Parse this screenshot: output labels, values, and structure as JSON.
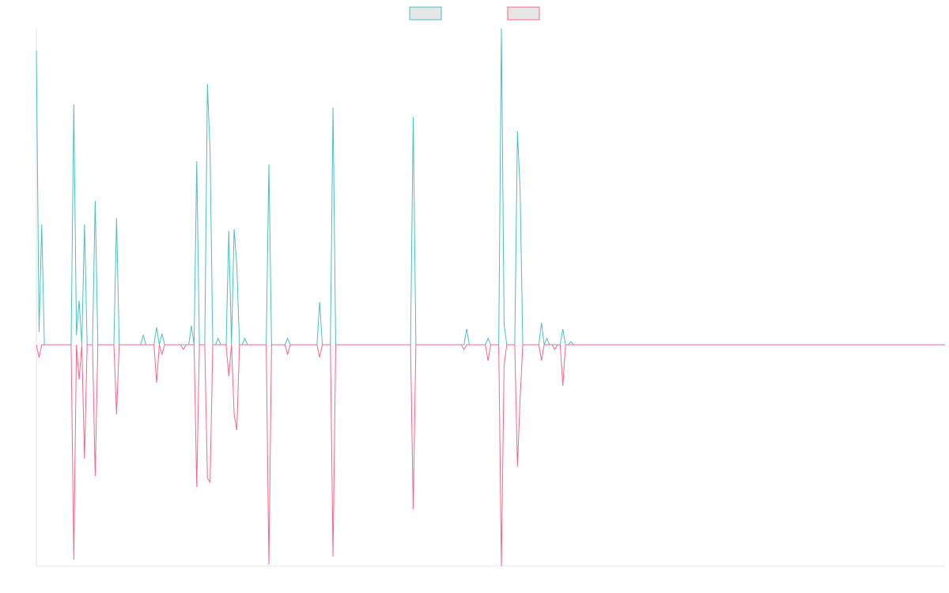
{
  "chart_data": {
    "type": "line",
    "x": [
      0,
      1,
      2,
      3,
      13,
      14,
      15,
      16,
      17,
      18,
      19,
      21,
      22,
      23,
      29,
      30,
      31,
      39,
      40,
      41,
      44,
      45,
      46,
      47,
      48,
      54,
      55,
      56,
      57,
      58,
      59,
      60,
      61,
      63,
      64,
      65,
      66,
      67,
      68,
      69,
      71,
      72,
      73,
      74,
      75,
      76,
      77,
      78,
      79,
      86,
      87,
      88,
      93,
      94,
      95,
      105,
      106,
      107,
      110,
      111,
      112,
      140,
      141,
      142,
      159,
      160,
      161,
      162,
      168,
      169,
      170,
      173,
      174,
      175,
      176,
      179,
      180,
      181,
      182,
      188,
      189,
      190,
      191,
      192,
      193,
      194,
      195,
      196,
      197,
      198,
      199,
      200,
      201,
      340
    ],
    "series": [
      {
        "color": "#4bc0c0",
        "values": [
          9.3,
          0.4,
          3.8,
          0,
          0,
          7.6,
          0.3,
          1.4,
          0,
          3.8,
          0,
          0,
          4.55,
          0,
          0,
          4.0,
          0,
          0,
          0.3,
          0,
          0,
          0.55,
          0,
          0.35,
          0,
          0,
          0,
          0,
          0,
          0.6,
          0,
          5.8,
          0,
          0,
          8.25,
          6.1,
          0,
          0,
          0.2,
          0,
          0,
          3.6,
          0,
          3.65,
          2.5,
          0,
          0,
          0.2,
          0,
          0,
          5.7,
          0,
          0,
          0.2,
          0,
          0,
          1.35,
          0,
          0,
          7.5,
          0,
          0,
          7.2,
          0,
          0,
          0,
          0.5,
          0,
          0,
          0.2,
          0,
          0,
          10,
          0.65,
          0,
          0,
          6.75,
          4.9,
          0,
          0,
          0.7,
          0,
          0.2,
          0,
          0,
          0,
          0,
          0,
          0.5,
          0,
          0,
          0.1,
          0,
          0
        ]
      },
      {
        "color": "#ff6384",
        "values": [
          0,
          -0.4,
          0,
          0,
          0,
          -6.8,
          0,
          -1.1,
          0,
          -3.6,
          0,
          0,
          -4.15,
          0,
          0,
          -2.2,
          0,
          0,
          0,
          0,
          0,
          -1.2,
          0,
          -0.3,
          0,
          0,
          -0.15,
          0,
          0,
          0,
          0,
          -4.5,
          0,
          0,
          -4.2,
          -4.35,
          0,
          0,
          0,
          0,
          0,
          -1.0,
          0,
          -2.2,
          -2.7,
          0,
          0,
          0,
          0,
          0,
          -6.95,
          0,
          0,
          -0.3,
          0,
          0,
          -0.4,
          0,
          0,
          -6.7,
          0,
          0,
          -5.2,
          0,
          0,
          -0.15,
          0,
          0,
          0,
          -0.5,
          0,
          0,
          -7.0,
          -0.65,
          0,
          0,
          -3.85,
          -1.7,
          0,
          0,
          -0.5,
          0,
          0,
          0,
          0,
          -0.15,
          0,
          0,
          -1.3,
          0,
          0,
          0,
          0,
          0
        ]
      }
    ],
    "xlim": [
      0,
      340
    ],
    "ylim": [
      -7,
      10
    ],
    "legend": "top"
  }
}
